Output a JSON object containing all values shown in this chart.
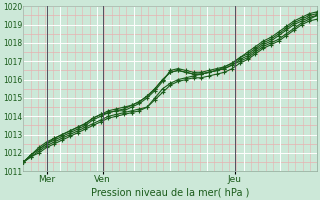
{
  "title": "Pression niveau de la mer( hPa )",
  "ylim": [
    1011,
    1020
  ],
  "yticks": [
    1011,
    1012,
    1013,
    1014,
    1015,
    1016,
    1017,
    1018,
    1019,
    1020
  ],
  "xtick_labels": [
    "Mer",
    "Ven",
    "Jeu"
  ],
  "xtick_positions": [
    0.08,
    0.27,
    0.72
  ],
  "bg_color": "#cce8d8",
  "grid_major_color": "#ffffff",
  "grid_minor_color": "#f0c8c8",
  "line_color": "#1a5c1a",
  "marker": "+",
  "vline_color": "#5050708",
  "series": [
    [
      1011.5,
      1011.8,
      1012.1,
      1012.4,
      1012.6,
      1012.8,
      1013.0,
      1013.2,
      1013.4,
      1013.6,
      1013.8,
      1014.0,
      1014.1,
      1014.2,
      1014.3,
      1014.4,
      1014.5,
      1015.0,
      1015.5,
      1015.8,
      1016.0,
      1016.1,
      1016.2,
      1016.3,
      1016.4,
      1016.5,
      1016.6,
      1016.8,
      1017.0,
      1017.2,
      1017.5,
      1017.8,
      1018.0,
      1018.2,
      1018.5,
      1018.8,
      1019.1,
      1019.3,
      1019.5
    ],
    [
      1011.5,
      1011.9,
      1012.2,
      1012.5,
      1012.7,
      1012.9,
      1013.1,
      1013.3,
      1013.5,
      1013.8,
      1014.0,
      1014.2,
      1014.3,
      1014.4,
      1014.6,
      1014.8,
      1015.1,
      1015.5,
      1016.0,
      1016.4,
      1016.5,
      1016.4,
      1016.3,
      1016.3,
      1016.4,
      1016.5,
      1016.6,
      1016.8,
      1017.1,
      1017.3,
      1017.6,
      1017.9,
      1018.1,
      1018.4,
      1018.7,
      1019.0,
      1019.2,
      1019.4,
      1019.5
    ],
    [
      1011.5,
      1011.9,
      1012.3,
      1012.6,
      1012.8,
      1013.0,
      1013.2,
      1013.4,
      1013.6,
      1013.9,
      1014.1,
      1014.2,
      1014.3,
      1014.3,
      1014.5,
      1014.7,
      1015.0,
      1015.4,
      1015.9,
      1016.5,
      1016.6,
      1016.5,
      1016.4,
      1016.4,
      1016.5,
      1016.6,
      1016.7,
      1016.9,
      1017.2,
      1017.4,
      1017.7,
      1018.0,
      1018.2,
      1018.5,
      1018.8,
      1019.1,
      1019.3,
      1019.5,
      1019.6
    ],
    [
      1011.5,
      1011.8,
      1012.0,
      1012.3,
      1012.5,
      1012.7,
      1012.9,
      1013.1,
      1013.3,
      1013.5,
      1013.7,
      1013.9,
      1014.0,
      1014.1,
      1014.2,
      1014.3,
      1014.5,
      1014.9,
      1015.3,
      1015.7,
      1015.9,
      1016.0,
      1016.1,
      1016.1,
      1016.2,
      1016.3,
      1016.4,
      1016.6,
      1016.9,
      1017.1,
      1017.4,
      1017.7,
      1017.9,
      1018.1,
      1018.4,
      1018.7,
      1019.0,
      1019.2,
      1019.3
    ],
    [
      1011.5,
      1011.9,
      1012.2,
      1012.5,
      1012.8,
      1013.0,
      1013.2,
      1013.4,
      1013.6,
      1013.9,
      1014.1,
      1014.3,
      1014.4,
      1014.5,
      1014.6,
      1014.8,
      1015.1,
      1015.5,
      1016.0,
      1016.4,
      1016.5,
      1016.4,
      1016.3,
      1016.3,
      1016.4,
      1016.5,
      1016.7,
      1016.9,
      1017.2,
      1017.5,
      1017.8,
      1018.1,
      1018.3,
      1018.6,
      1018.9,
      1019.2,
      1019.4,
      1019.6,
      1019.7
    ]
  ],
  "figsize": [
    3.2,
    2.0
  ],
  "dpi": 100
}
